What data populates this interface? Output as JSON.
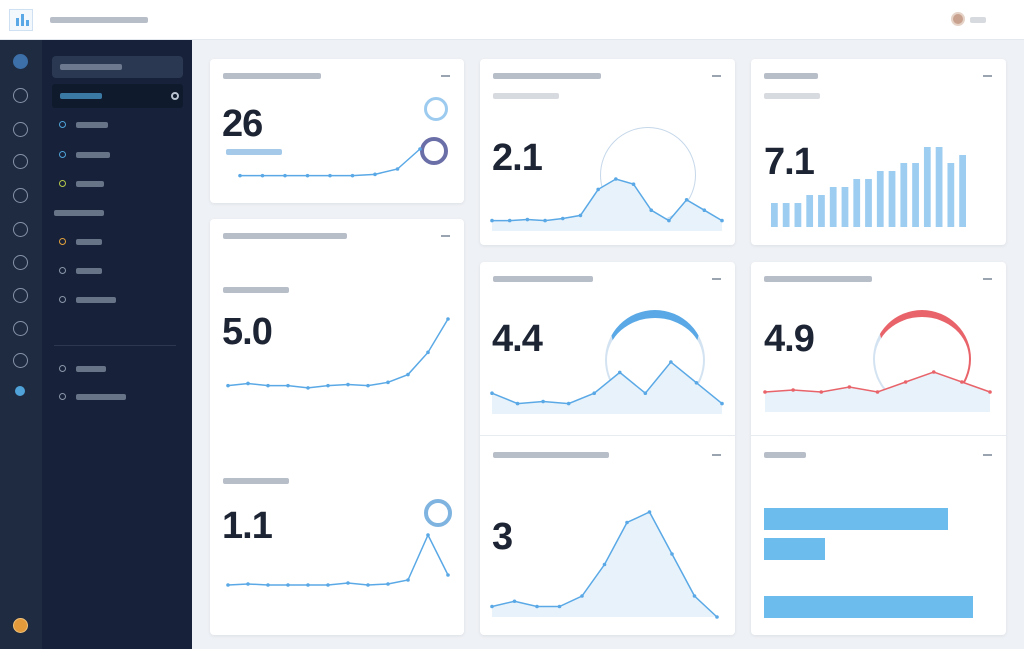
{
  "colors": {
    "accent": "#5aa9e6",
    "sidebar": "#17223a",
    "rail": "#1f2b40",
    "red": "#e8646a",
    "background": "#eef1f5"
  },
  "metrics": {
    "card_a": "26",
    "card_c": "2.1",
    "card_e": "7.1",
    "card_b_top": "5.0",
    "card_b_bottom": "1.1",
    "card_d_top": "4.4",
    "card_d_bottom": "3",
    "card_f_top": "4.9"
  },
  "series": {
    "a": [
      2,
      2,
      2,
      2,
      2,
      2,
      2.2,
      3,
      6
    ],
    "c": [
      1,
      1,
      1.1,
      1,
      1.2,
      1.5,
      4,
      5,
      4.5,
      2,
      1,
      3,
      2,
      1
    ],
    "e": [
      3,
      3,
      3,
      4,
      4,
      5,
      5,
      6,
      6,
      7,
      7,
      8,
      8,
      10,
      10,
      8,
      9
    ],
    "b_top": [
      3,
      3.2,
      3,
      3,
      2.8,
      3,
      3.1,
      3,
      3.3,
      4,
      6,
      9
    ],
    "b_bottom": [
      1,
      1.1,
      1,
      1,
      1,
      1,
      1.2,
      1,
      1.1,
      1.5,
      6,
      2
    ],
    "d_top": [
      2,
      1,
      1.2,
      1,
      2,
      4,
      2,
      5,
      3,
      1
    ],
    "d_bottom": [
      1,
      1.5,
      1,
      1,
      2,
      5,
      9,
      10,
      6,
      2,
      0
    ],
    "f_top": [
      2,
      2.2,
      2,
      2.5,
      2,
      3,
      4,
      3,
      2
    ]
  },
  "bars_f": [
    0.72,
    0.24,
    0.82
  ]
}
